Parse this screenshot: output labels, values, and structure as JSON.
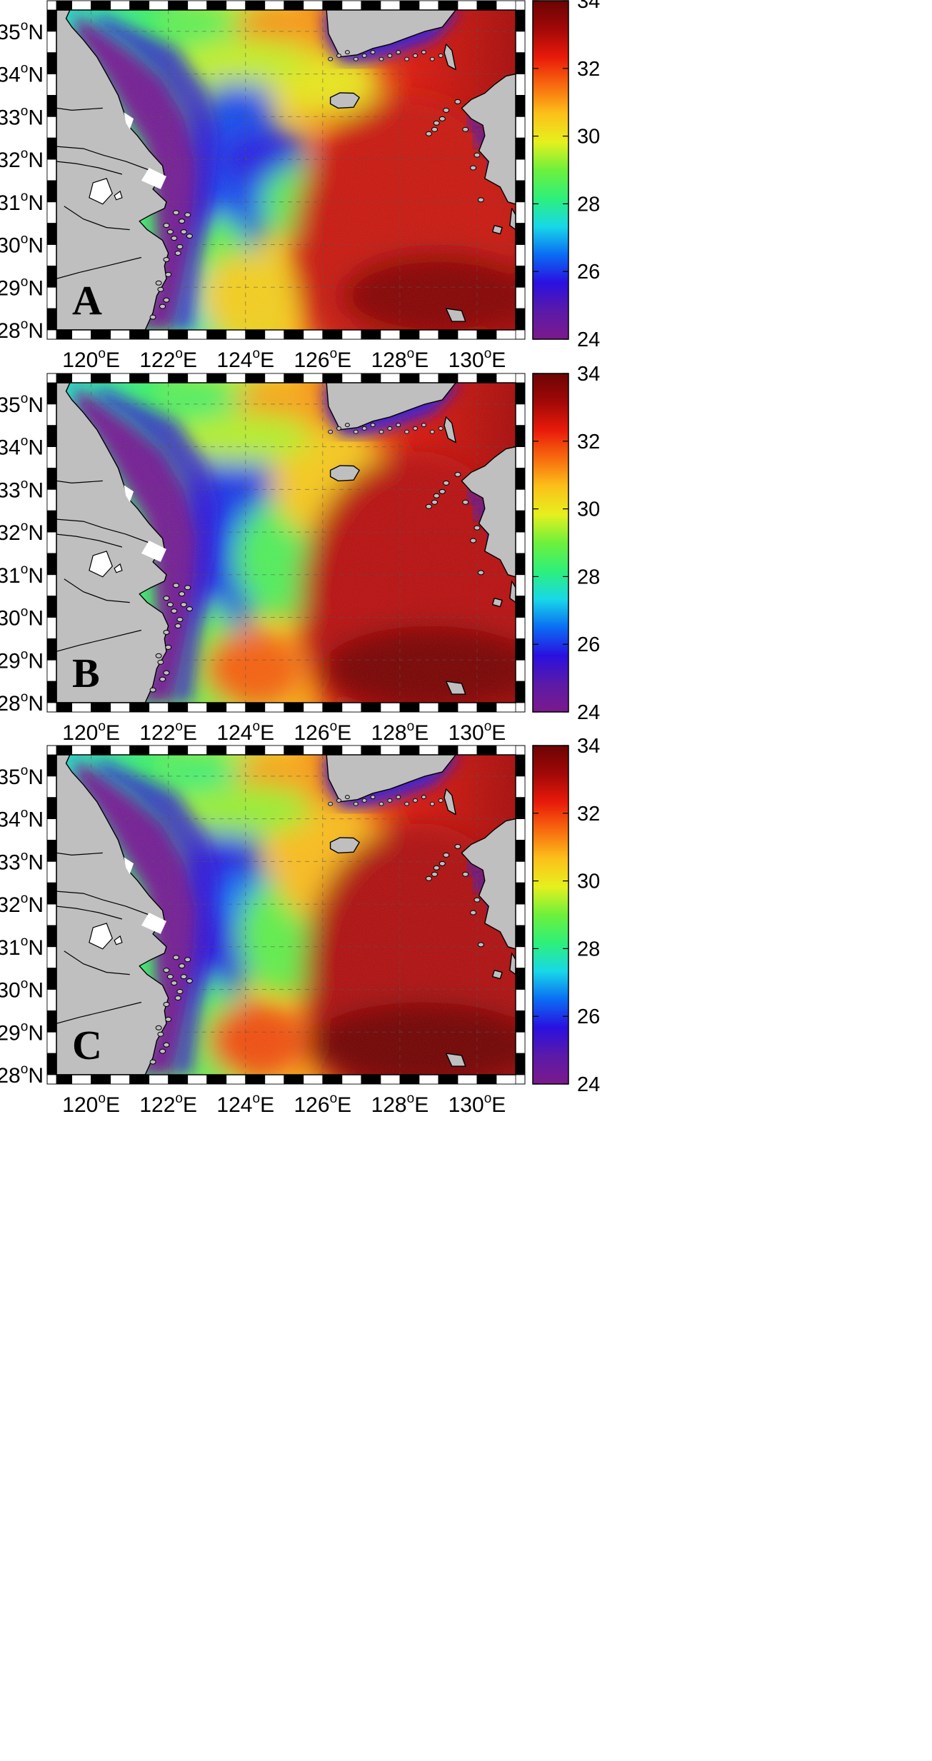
{
  "figure": {
    "color_scale": {
      "min": 24,
      "max": 34,
      "tick_labels": [
        "34",
        "32",
        "30",
        "28",
        "26",
        "24"
      ],
      "colormap": [
        "#7b1a8c",
        "#5b1aa8",
        "#2a10e0",
        "#0b6cf4",
        "#18d8e8",
        "#2ef07a",
        "#6ef03c",
        "#e6f01e",
        "#fcc01a",
        "#f86a0e",
        "#e81a0a",
        "#a10808",
        "#6b0404"
      ]
    },
    "land_color": "#bfbfbf",
    "axes": {
      "lat_ticks": [
        {
          "value": 35,
          "deg": "35",
          "hemi": "N"
        },
        {
          "value": 34,
          "deg": "34",
          "hemi": "N"
        },
        {
          "value": 33,
          "deg": "33",
          "hemi": "N"
        },
        {
          "value": 32,
          "deg": "32",
          "hemi": "N"
        },
        {
          "value": 31,
          "deg": "31",
          "hemi": "N"
        },
        {
          "value": 30,
          "deg": "30",
          "hemi": "N"
        },
        {
          "value": 29,
          "deg": "29",
          "hemi": "N"
        },
        {
          "value": 28,
          "deg": "28",
          "hemi": "N"
        }
      ],
      "lon_ticks": [
        {
          "value": 120,
          "deg": "120",
          "hemi": "E"
        },
        {
          "value": 122,
          "deg": "122",
          "hemi": "E"
        },
        {
          "value": 124,
          "deg": "124",
          "hemi": "E"
        },
        {
          "value": 126,
          "deg": "126",
          "hemi": "E"
        },
        {
          "value": 128,
          "deg": "128",
          "hemi": "E"
        },
        {
          "value": 130,
          "deg": "130",
          "hemi": "E"
        }
      ],
      "degree_symbol": "o",
      "lon_range": [
        119.1,
        131.0
      ],
      "lat_range": [
        28.0,
        35.5
      ]
    },
    "panels": [
      {
        "label": "A"
      },
      {
        "label": "B"
      },
      {
        "label": "C"
      }
    ]
  }
}
